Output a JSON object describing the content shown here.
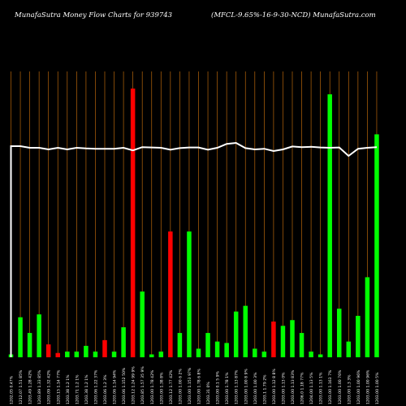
{
  "header": {
    "title_left": "MunafaSutra  Money Flow  Charts for 939743",
    "title_right": "(MFCL-9.65%-16-9-30-NCD) MunafaSutra.com"
  },
  "colors": {
    "background": "#000000",
    "gridline": "#b8660b",
    "up": "#00ff00",
    "down": "#ff0000",
    "price_line": "#ffffff",
    "labels": "#ffffff"
  },
  "chart_data": {
    "type": "bar",
    "title": "",
    "xlabel": "",
    "ylabel": "",
    "ylim": [
      0,
      100
    ],
    "grid": true,
    "series": [
      {
        "values": [
          1,
          14,
          8.5,
          15,
          4.5,
          1.5,
          2,
          2,
          4,
          2,
          6,
          2,
          10.5,
          94,
          23,
          1,
          2,
          44,
          8.5,
          44,
          3,
          8.5,
          5.5,
          5,
          16,
          18,
          3,
          2,
          12.5,
          11,
          13,
          8.5,
          2,
          1,
          92,
          17,
          5.5,
          14.5,
          28,
          78
        ],
        "colors": [
          "up",
          "up",
          "up",
          "up",
          "down",
          "down",
          "up",
          "up",
          "up",
          "up",
          "down",
          "up",
          "up",
          "down",
          "up",
          "up",
          "up",
          "down",
          "up",
          "up",
          "up",
          "up",
          "up",
          "up",
          "up",
          "up",
          "up",
          "up",
          "down",
          "up",
          "up",
          "up",
          "up",
          "up",
          "up",
          "up",
          "up",
          "up",
          "up",
          "up"
        ]
      }
    ],
    "line": {
      "values": [
        100,
        100,
        97.5,
        97.5,
        95,
        97.5,
        95,
        97.5,
        96.5,
        96,
        96,
        96,
        97.5,
        93.5,
        98.5,
        98,
        97.5,
        94.5,
        97,
        98,
        98,
        94.5,
        97.5,
        103.5,
        105,
        97,
        95,
        96,
        92.5,
        95,
        99.5,
        98.5,
        99,
        98,
        97.5,
        98,
        85,
        96,
        97.5,
        98.5
      ],
      "start": 0
    },
    "categories": [
      "1202.05 0.47%",
      "1212.07 1.51 85%",
      "1203.49 1.28 42%",
      "1203.89 1.33 85%",
      "1203.09 1.32 42%",
      "1203.15 1.14 77%",
      "1203.38 1.2 1%",
      "1203.71 1.2 1%",
      "1203.38 1.2 1%",
      "1203.06 1.22 37%",
      "1203.06 1.2 3%",
      "1203.06 1.14 94%",
      "1203.06 1.152 50%",
      "1203.12 1.24 99 9%",
      "1203.85 1.57 35 9%",
      "1203.00 1.78 42%",
      "1203.00 1.38 8%",
      "1203.12 1.77 42%",
      "1203.00 1.00 6 2%",
      "1203.00 1.153 97%",
      "1203.00 1.78 6 8%",
      "1203.31 0%",
      "1203.00 0.1 5 9%",
      "1203.00 1.78 1%",
      "1203.00 1.13 87%",
      "1203.00 1.00 8 9%",
      "1203.00 1.00 3%",
      "1203.1 1.79 2%",
      "1203.00 1.12 8 8%",
      "1203.00 1.13 0%",
      "1203.00 1.13 83%",
      "1206.0 1.18 77%",
      "1204.00 1.13 5%",
      "1203.00 1.13 1%",
      "1203.00 1.163 7%",
      "1203.00 1.00 76%",
      "1203.00 1.3 3%",
      "1203.00 1.00 96%",
      "1203.00 1.00 96%",
      "1203.00 1.00 5%"
    ]
  }
}
